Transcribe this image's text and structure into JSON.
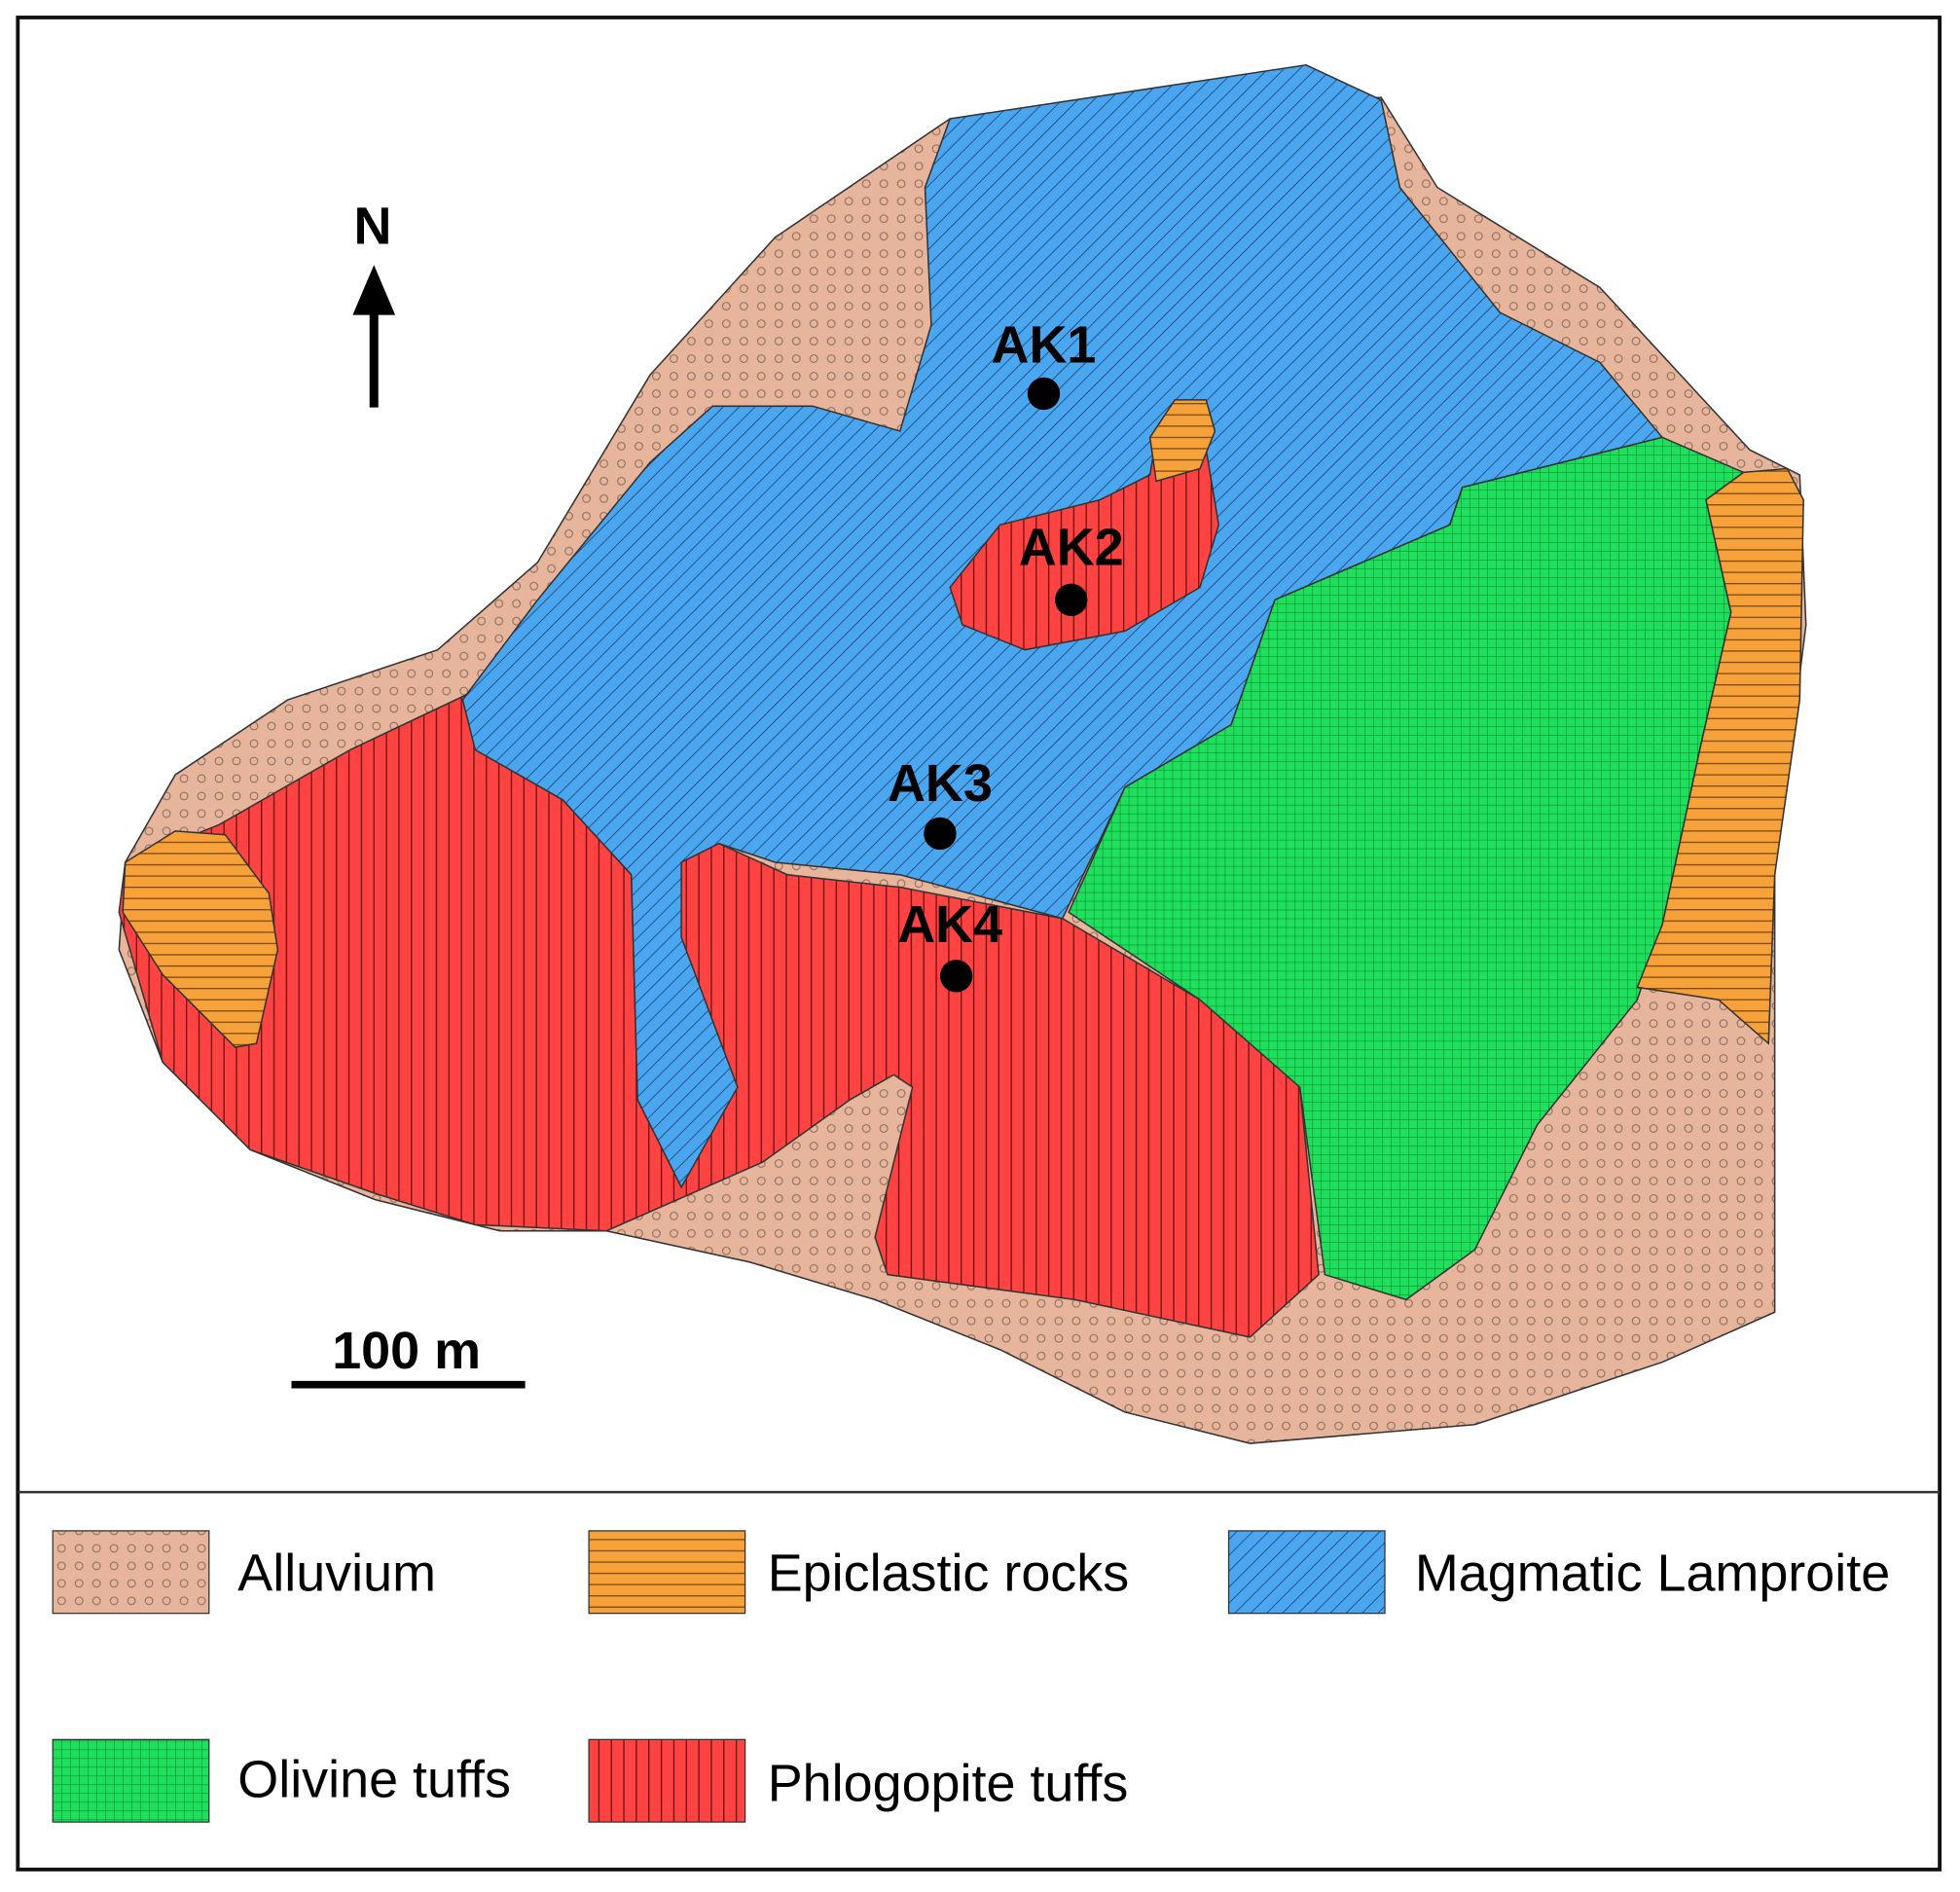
{
  "map": {
    "north_label": "N",
    "sites": [
      {
        "label": "AK1"
      },
      {
        "label": "AK2"
      },
      {
        "label": "AK3"
      },
      {
        "label": "AK4"
      }
    ],
    "scale_bar": {
      "label": "100 m"
    }
  },
  "legend": {
    "items": [
      {
        "label": "Alluvium"
      },
      {
        "label": "Epiclastic rocks"
      },
      {
        "label": "Magmatic Lamproite"
      },
      {
        "label": "Olivine tuffs"
      },
      {
        "label": "Phlogopite tuffs"
      }
    ]
  }
}
